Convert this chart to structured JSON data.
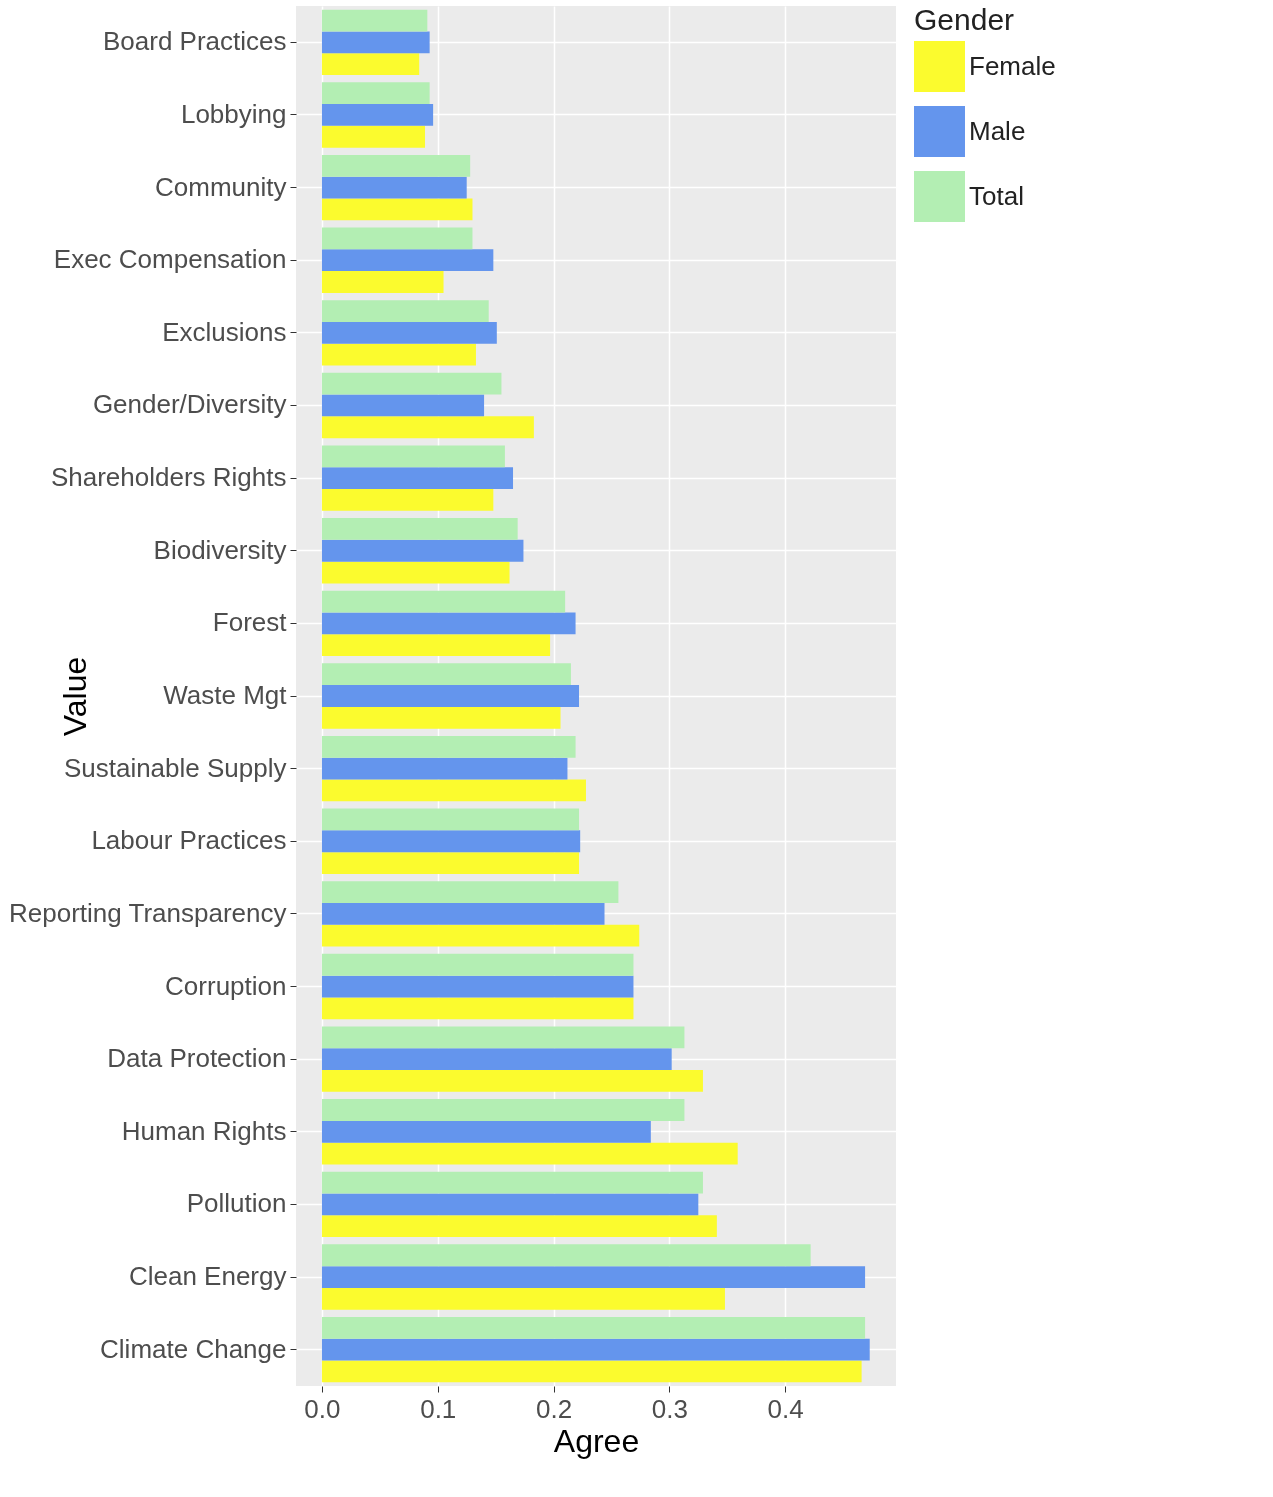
{
  "chart_data": {
    "type": "bar",
    "orientation": "horizontal",
    "xlabel": "Agree",
    "ylabel": "Value",
    "legend_title": "Gender",
    "categories": [
      "Board Practices",
      "Lobbying",
      "Community",
      "Exec Compensation",
      "Exclusions",
      "Gender/Diversity",
      "Shareholders Rights",
      "Biodiversity",
      "Forest",
      "Waste Mgt",
      "Sustainable Supply",
      "Labour Practices",
      "Reporting Transparency",
      "Corruption",
      "Data Protection",
      "Human Rights",
      "Pollution",
      "Clean Energy",
      "Climate Change"
    ],
    "series": [
      {
        "name": "Female",
        "color": "#fbfb2e",
        "values": [
          0.084,
          0.089,
          0.13,
          0.105,
          0.133,
          0.183,
          0.148,
          0.162,
          0.197,
          0.206,
          0.228,
          0.222,
          0.274,
          0.269,
          0.329,
          0.359,
          0.341,
          0.348,
          0.466
        ]
      },
      {
        "name": "Male",
        "color": "#6495ed",
        "values": [
          0.093,
          0.096,
          0.125,
          0.148,
          0.151,
          0.14,
          0.165,
          0.174,
          0.219,
          0.222,
          0.212,
          0.223,
          0.244,
          0.269,
          0.302,
          0.284,
          0.325,
          0.469,
          0.473
        ]
      },
      {
        "name": "Total",
        "color": "#b3eeb3",
        "values": [
          0.091,
          0.093,
          0.128,
          0.13,
          0.144,
          0.155,
          0.158,
          0.169,
          0.21,
          0.215,
          0.219,
          0.222,
          0.256,
          0.269,
          0.313,
          0.313,
          0.329,
          0.422,
          0.469
        ]
      }
    ],
    "xlim": [
      -0.0224,
      0.4957
    ],
    "xticks": [
      {
        "value": 0,
        "label": "0.0"
      },
      0.1,
      0.2,
      0.3,
      0.4
    ],
    "grid": true,
    "legend": "right"
  }
}
